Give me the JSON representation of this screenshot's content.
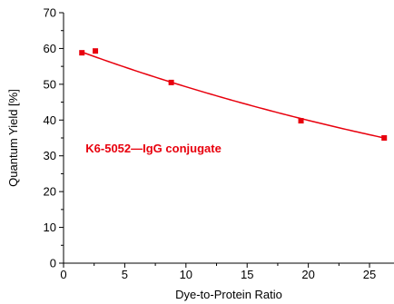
{
  "colors": {
    "series": "#e8000d",
    "axis": "#000000"
  },
  "chart_data": {
    "type": "scatter",
    "xlabel": "Dye-to-Protein Ratio",
    "ylabel": "Quantum Yield [%]",
    "xlim": [
      0,
      27
    ],
    "ylim": [
      0,
      70
    ],
    "x_ticks": [
      0,
      5,
      10,
      15,
      20,
      25
    ],
    "y_ticks": [
      0,
      10,
      20,
      30,
      40,
      50,
      60,
      70
    ],
    "grid": false,
    "annotations": [
      {
        "text": "K6-5052—IgG  conjugate",
        "x": 1.8,
        "y": 31
      }
    ],
    "series": [
      {
        "kind": "points",
        "marker": "square",
        "x": [
          1.5,
          2.6,
          8.8,
          19.4,
          26.2
        ],
        "y": [
          58.8,
          59.3,
          50.5,
          39.8,
          35.0
        ]
      },
      {
        "kind": "fit_line",
        "x_range": [
          1.5,
          26.2
        ],
        "y_start": 59.0,
        "y_end": 35.0,
        "decay_rate": 0.021
      }
    ]
  }
}
